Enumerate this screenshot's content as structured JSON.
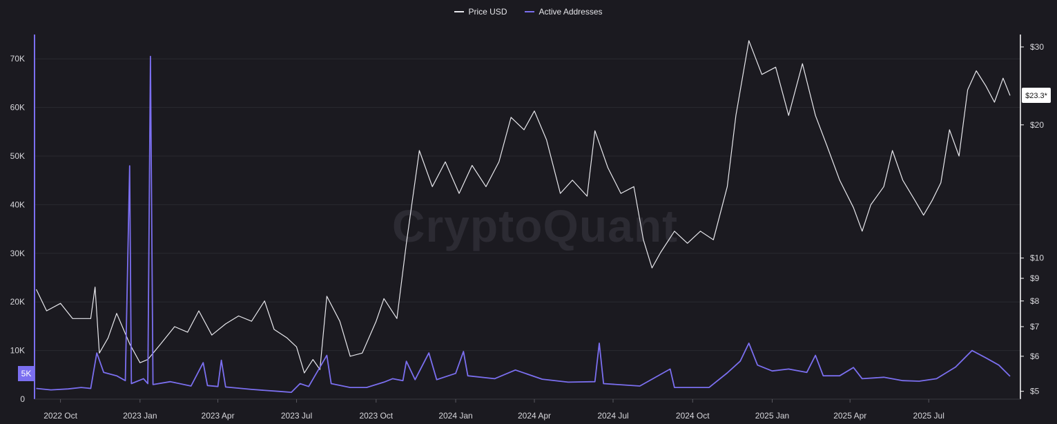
{
  "colors": {
    "background": "#1b1a20",
    "grid": "#2b2a31",
    "price": "#e9e9ee",
    "addresses": "#7b6ff0",
    "axis_text": "#d8d8dc"
  },
  "legend": {
    "price_label": "Price USD",
    "addresses_label": "Active Addresses"
  },
  "watermark": "CryptoQuant",
  "chart_data": {
    "type": "line",
    "title": "",
    "legend_position": "top-center",
    "grid": true,
    "x_tick_labels": [
      "2022 Oct",
      "2023 Jan",
      "2023 Apr",
      "2023 Jul",
      "2023 Oct",
      "2024 Jan",
      "2024 Apr",
      "2024 Jul",
      "2024 Oct",
      "2025 Jan",
      "2025 Apr",
      "2025 Jul"
    ],
    "x_range": [
      "2022-09-01",
      "2025-10-15"
    ],
    "y_left": {
      "label": "",
      "ylim": [
        0,
        75000
      ],
      "ticks": [
        0,
        10000,
        20000,
        30000,
        40000,
        50000,
        60000,
        70000
      ],
      "tick_labels": [
        "0",
        "10K",
        "20K",
        "30K",
        "40K",
        "50K",
        "60K",
        "70K"
      ]
    },
    "y_right": {
      "label": "",
      "scale": "log",
      "ylim": [
        4.8,
        32
      ],
      "ticks": [
        5,
        6,
        7,
        8,
        9,
        10,
        20,
        30
      ],
      "tick_labels": [
        "$5",
        "$6",
        "$7",
        "$8",
        "$9",
        "$10",
        "$20",
        "$30"
      ]
    },
    "current_price_label": "$23.3*",
    "current_addresses_label": "5K",
    "series": [
      {
        "name": "Price USD",
        "axis": "right",
        "points": [
          [
            "2022-09-03",
            8.5
          ],
          [
            "2022-09-15",
            7.6
          ],
          [
            "2022-10-01",
            7.9
          ],
          [
            "2022-10-15",
            7.3
          ],
          [
            "2022-11-05",
            7.3
          ],
          [
            "2022-11-10",
            8.6
          ],
          [
            "2022-11-15",
            6.1
          ],
          [
            "2022-11-25",
            6.6
          ],
          [
            "2022-12-05",
            7.5
          ],
          [
            "2022-12-20",
            6.4
          ],
          [
            "2023-01-01",
            5.8
          ],
          [
            "2023-01-10",
            5.9
          ],
          [
            "2023-01-25",
            6.4
          ],
          [
            "2023-02-10",
            7.0
          ],
          [
            "2023-02-25",
            6.8
          ],
          [
            "2023-03-10",
            7.6
          ],
          [
            "2023-03-25",
            6.7
          ],
          [
            "2023-04-10",
            7.1
          ],
          [
            "2023-04-25",
            7.4
          ],
          [
            "2023-05-10",
            7.2
          ],
          [
            "2023-05-25",
            8.0
          ],
          [
            "2023-06-05",
            6.9
          ],
          [
            "2023-06-20",
            6.6
          ],
          [
            "2023-07-01",
            6.3
          ],
          [
            "2023-07-10",
            5.5
          ],
          [
            "2023-07-20",
            5.9
          ],
          [
            "2023-07-28",
            5.6
          ],
          [
            "2023-08-05",
            8.2
          ],
          [
            "2023-08-20",
            7.2
          ],
          [
            "2023-09-01",
            6.0
          ],
          [
            "2023-09-15",
            6.1
          ],
          [
            "2023-10-01",
            7.2
          ],
          [
            "2023-10-10",
            8.1
          ],
          [
            "2023-10-25",
            7.3
          ],
          [
            "2023-11-05",
            10.8
          ],
          [
            "2023-11-20",
            17.5
          ],
          [
            "2023-12-05",
            14.5
          ],
          [
            "2023-12-20",
            16.5
          ],
          [
            "2024-01-05",
            14.0
          ],
          [
            "2024-01-20",
            16.2
          ],
          [
            "2024-02-05",
            14.5
          ],
          [
            "2024-02-20",
            16.5
          ],
          [
            "2024-03-05",
            20.8
          ],
          [
            "2024-03-20",
            19.5
          ],
          [
            "2024-04-01",
            21.5
          ],
          [
            "2024-04-15",
            18.5
          ],
          [
            "2024-05-01",
            14.0
          ],
          [
            "2024-05-15",
            15.0
          ],
          [
            "2024-06-01",
            13.8
          ],
          [
            "2024-06-10",
            19.4
          ],
          [
            "2024-06-25",
            16.0
          ],
          [
            "2024-07-10",
            14.0
          ],
          [
            "2024-07-25",
            14.5
          ],
          [
            "2024-08-05",
            11.0
          ],
          [
            "2024-08-15",
            9.5
          ],
          [
            "2024-08-25",
            10.3
          ],
          [
            "2024-09-10",
            11.5
          ],
          [
            "2024-09-25",
            10.8
          ],
          [
            "2024-10-10",
            11.5
          ],
          [
            "2024-10-25",
            11.0
          ],
          [
            "2024-11-10",
            14.5
          ],
          [
            "2024-11-20",
            21.0
          ],
          [
            "2024-12-05",
            31.0
          ],
          [
            "2024-12-20",
            26.0
          ],
          [
            "2025-01-05",
            27.0
          ],
          [
            "2025-01-20",
            21.0
          ],
          [
            "2025-02-05",
            27.5
          ],
          [
            "2025-02-20",
            21.0
          ],
          [
            "2025-03-05",
            18.0
          ],
          [
            "2025-03-20",
            15.0
          ],
          [
            "2025-04-05",
            13.0
          ],
          [
            "2025-04-15",
            11.5
          ],
          [
            "2025-04-25",
            13.2
          ],
          [
            "2025-05-10",
            14.5
          ],
          [
            "2025-05-20",
            17.5
          ],
          [
            "2025-06-01",
            15.0
          ],
          [
            "2025-06-15",
            13.5
          ],
          [
            "2025-06-25",
            12.5
          ],
          [
            "2025-07-05",
            13.5
          ],
          [
            "2025-07-15",
            14.8
          ],
          [
            "2025-07-25",
            19.5
          ],
          [
            "2025-08-05",
            17.0
          ],
          [
            "2025-08-15",
            24.0
          ],
          [
            "2025-08-25",
            26.5
          ],
          [
            "2025-09-05",
            24.5
          ],
          [
            "2025-09-15",
            22.5
          ],
          [
            "2025-09-25",
            25.5
          ],
          [
            "2025-10-03",
            23.3
          ]
        ]
      },
      {
        "name": "Active Addresses",
        "axis": "left",
        "points": [
          [
            "2022-09-03",
            2200
          ],
          [
            "2022-09-20",
            1900
          ],
          [
            "2022-10-10",
            2100
          ],
          [
            "2022-10-25",
            2400
          ],
          [
            "2022-11-05",
            2200
          ],
          [
            "2022-11-12",
            9500
          ],
          [
            "2022-11-20",
            5500
          ],
          [
            "2022-12-05",
            4800
          ],
          [
            "2022-12-15",
            3800
          ],
          [
            "2022-12-20",
            48000
          ],
          [
            "2022-12-22",
            3200
          ],
          [
            "2023-01-05",
            4200
          ],
          [
            "2023-01-10",
            3200
          ],
          [
            "2023-01-13",
            70500
          ],
          [
            "2023-01-16",
            3000
          ],
          [
            "2023-02-05",
            3600
          ],
          [
            "2023-03-01",
            2700
          ],
          [
            "2023-03-15",
            7500
          ],
          [
            "2023-03-20",
            2800
          ],
          [
            "2023-04-01",
            2600
          ],
          [
            "2023-04-05",
            8000
          ],
          [
            "2023-04-10",
            2500
          ],
          [
            "2023-05-10",
            2000
          ],
          [
            "2023-06-10",
            1600
          ],
          [
            "2023-06-25",
            1400
          ],
          [
            "2023-07-05",
            3200
          ],
          [
            "2023-07-15",
            2600
          ],
          [
            "2023-08-05",
            9000
          ],
          [
            "2023-08-10",
            3200
          ],
          [
            "2023-09-01",
            2400
          ],
          [
            "2023-09-20",
            2400
          ],
          [
            "2023-10-10",
            3500
          ],
          [
            "2023-10-20",
            4200
          ],
          [
            "2023-11-01",
            3800
          ],
          [
            "2023-11-05",
            7800
          ],
          [
            "2023-11-15",
            4000
          ],
          [
            "2023-12-01",
            9500
          ],
          [
            "2023-12-10",
            4000
          ],
          [
            "2024-01-01",
            5300
          ],
          [
            "2024-01-10",
            9800
          ],
          [
            "2024-01-15",
            4800
          ],
          [
            "2024-02-15",
            4200
          ],
          [
            "2024-03-10",
            6000
          ],
          [
            "2024-04-10",
            4100
          ],
          [
            "2024-05-10",
            3500
          ],
          [
            "2024-06-10",
            3600
          ],
          [
            "2024-06-15",
            11500
          ],
          [
            "2024-06-20",
            3200
          ],
          [
            "2024-08-01",
            2700
          ],
          [
            "2024-09-05",
            6200
          ],
          [
            "2024-09-10",
            2400
          ],
          [
            "2024-10-20",
            2400
          ],
          [
            "2024-11-10",
            5400
          ],
          [
            "2024-11-25",
            7800
          ],
          [
            "2024-12-05",
            11500
          ],
          [
            "2024-12-15",
            7000
          ],
          [
            "2025-01-01",
            5800
          ],
          [
            "2025-01-20",
            6200
          ],
          [
            "2025-02-10",
            5500
          ],
          [
            "2025-02-20",
            9000
          ],
          [
            "2025-03-01",
            4800
          ],
          [
            "2025-03-20",
            4800
          ],
          [
            "2025-04-05",
            6500
          ],
          [
            "2025-04-15",
            4200
          ],
          [
            "2025-05-10",
            4500
          ],
          [
            "2025-06-01",
            3800
          ],
          [
            "2025-06-20",
            3700
          ],
          [
            "2025-07-10",
            4200
          ],
          [
            "2025-08-01",
            6600
          ],
          [
            "2025-08-20",
            10000
          ],
          [
            "2025-09-05",
            8500
          ],
          [
            "2025-09-20",
            7000
          ],
          [
            "2025-10-03",
            4700
          ]
        ]
      }
    ]
  }
}
